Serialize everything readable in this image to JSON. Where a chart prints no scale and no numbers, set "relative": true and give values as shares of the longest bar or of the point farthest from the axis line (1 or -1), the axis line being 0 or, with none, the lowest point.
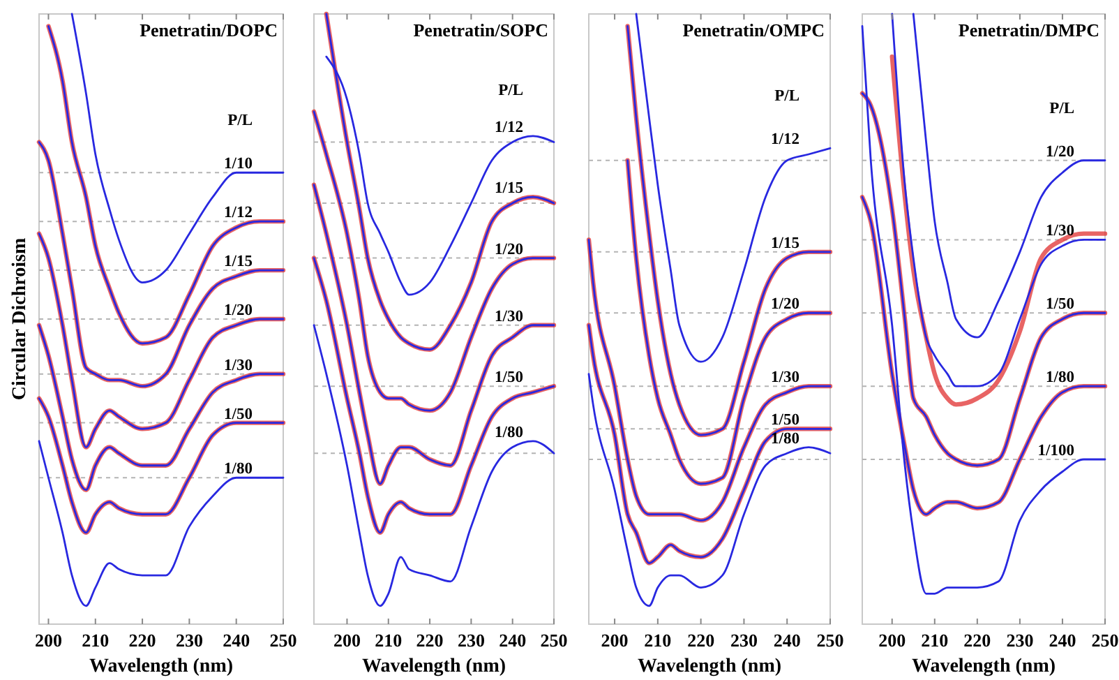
{
  "chart_data": [
    {
      "type": "line",
      "title": "Penetratin/DOPC",
      "legend_title": "P/L",
      "xlabel": "Wavelength (nm)",
      "ylabel": "Circular Dichroism",
      "relative": true,
      "xlim": [
        198,
        250
      ],
      "xticks": [
        200,
        210,
        220,
        230,
        240,
        250
      ],
      "x": [
        198,
        200,
        203,
        205,
        208,
        210,
        213,
        215,
        220,
        225,
        230,
        235,
        240,
        245,
        250
      ],
      "ref_lines": [
        {
          "axis": "y",
          "value": 0.74,
          "color": "#b4b4b4",
          "line_style": "dashed"
        },
        {
          "axis": "y",
          "value": 0.66,
          "color": "#b4b4b4",
          "line_style": "dashed"
        },
        {
          "axis": "y",
          "value": 0.58,
          "color": "#b4b4b4",
          "line_style": "dashed"
        },
        {
          "axis": "y",
          "value": 0.5,
          "color": "#b4b4b4",
          "line_style": "dashed"
        },
        {
          "axis": "y",
          "value": 0.41,
          "color": "#b4b4b4",
          "line_style": "dashed"
        },
        {
          "axis": "y",
          "value": 0.33,
          "color": "#b4b4b4",
          "line_style": "dashed"
        },
        {
          "axis": "y",
          "value": 0.24,
          "color": "#b4b4b4",
          "line_style": "dashed"
        }
      ],
      "series": [
        {
          "color": "#e03030",
          "values": [
            null,
            0.98,
            0.89,
            0.79,
            0.7,
            0.62,
            0.55,
            0.51,
            0.46,
            0.47,
            0.54,
            0.62,
            0.65,
            0.66,
            0.66
          ]
        },
        {
          "color": "#e03030",
          "values": [
            0.79,
            0.76,
            0.64,
            0.55,
            0.42,
            0.41,
            0.4,
            0.4,
            0.39,
            0.41,
            0.49,
            0.55,
            0.57,
            0.58,
            0.58
          ]
        },
        {
          "color": "#e03030",
          "values": [
            0.64,
            0.6,
            0.49,
            0.4,
            0.29,
            0.32,
            0.35,
            0.34,
            0.32,
            0.33,
            0.4,
            0.47,
            0.49,
            0.5,
            0.5
          ]
        },
        {
          "color": "#e03030",
          "values": [
            0.49,
            0.44,
            0.34,
            0.27,
            0.22,
            0.26,
            0.29,
            0.28,
            0.26,
            0.26,
            0.32,
            0.38,
            0.4,
            0.41,
            0.41
          ]
        },
        {
          "color": "#e03030",
          "values": [
            0.37,
            0.34,
            0.26,
            0.2,
            0.15,
            0.18,
            0.2,
            0.19,
            0.18,
            0.18,
            0.24,
            0.31,
            0.33,
            0.33,
            0.33
          ]
        },
        {
          "name": "1/10",
          "color": "#2828e0",
          "values": [
            null,
            null,
            null,
            1,
            0.87,
            0.77,
            0.68,
            0.63,
            0.56,
            0.58,
            0.64,
            0.7,
            0.74,
            0.74,
            0.74
          ]
        },
        {
          "name": "1/12",
          "color": "#2828e0",
          "values": [
            null,
            0.98,
            0.89,
            0.79,
            0.7,
            0.62,
            0.55,
            0.51,
            0.46,
            0.47,
            0.54,
            0.62,
            0.65,
            0.66,
            0.66
          ]
        },
        {
          "name": "1/15",
          "color": "#2828e0",
          "values": [
            0.79,
            0.76,
            0.64,
            0.55,
            0.42,
            0.41,
            0.4,
            0.4,
            0.39,
            0.41,
            0.49,
            0.55,
            0.57,
            0.58,
            0.58
          ]
        },
        {
          "name": "1/20",
          "color": "#2828e0",
          "values": [
            0.64,
            0.6,
            0.49,
            0.4,
            0.29,
            0.32,
            0.35,
            0.34,
            0.32,
            0.33,
            0.4,
            0.47,
            0.49,
            0.5,
            0.5
          ]
        },
        {
          "name": "1/30",
          "color": "#2828e0",
          "values": [
            0.49,
            0.44,
            0.34,
            0.27,
            0.22,
            0.26,
            0.29,
            0.28,
            0.26,
            0.26,
            0.32,
            0.38,
            0.4,
            0.41,
            0.41
          ]
        },
        {
          "name": "1/50",
          "color": "#2828e0",
          "values": [
            0.37,
            0.34,
            0.26,
            0.2,
            0.15,
            0.18,
            0.2,
            0.19,
            0.18,
            0.18,
            0.24,
            0.31,
            0.33,
            0.33,
            0.33
          ]
        },
        {
          "name": "1/80",
          "color": "#2828e0",
          "values": [
            0.3,
            0.24,
            0.15,
            0.08,
            0.03,
            0.06,
            0.1,
            0.09,
            0.08,
            0.08,
            0.16,
            0.21,
            0.24,
            0.24,
            0.24
          ]
        }
      ]
    },
    {
      "type": "line",
      "title": "Penetratin/SOPC",
      "legend_title": "P/L",
      "xlabel": "Wavelength (nm)",
      "relative": true,
      "xlim": [
        192,
        250
      ],
      "xticks": [
        200,
        210,
        220,
        230,
        240,
        250
      ],
      "x": [
        192,
        195,
        200,
        203,
        205,
        208,
        210,
        213,
        215,
        220,
        225,
        230,
        235,
        240,
        245,
        250
      ],
      "ref_lines": [
        {
          "axis": "y",
          "value": 0.79,
          "color": "#b4b4b4",
          "line_style": "dashed"
        },
        {
          "axis": "y",
          "value": 0.69,
          "color": "#b4b4b4",
          "line_style": "dashed"
        },
        {
          "axis": "y",
          "value": 0.6,
          "color": "#b4b4b4",
          "line_style": "dashed"
        },
        {
          "axis": "y",
          "value": 0.49,
          "color": "#b4b4b4",
          "line_style": "dashed"
        },
        {
          "axis": "y",
          "value": 0.39,
          "color": "#b4b4b4",
          "line_style": "dashed"
        },
        {
          "axis": "y",
          "value": 0.28,
          "color": "#b4b4b4",
          "line_style": "dashed"
        }
      ],
      "series": [
        {
          "color": "#e03030",
          "values": [
            null,
            1,
            0.79,
            0.68,
            0.6,
            0.53,
            0.5,
            0.47,
            0.46,
            0.45,
            0.49,
            0.56,
            0.66,
            0.69,
            0.7,
            0.69
          ]
        },
        {
          "color": "#e03030",
          "values": [
            0.84,
            0.77,
            0.64,
            0.53,
            0.44,
            0.38,
            0.37,
            0.37,
            0.36,
            0.35,
            0.38,
            0.47,
            0.55,
            0.59,
            0.6,
            0.6
          ]
        },
        {
          "color": "#e03030",
          "values": [
            0.72,
            0.64,
            0.49,
            0.38,
            0.31,
            0.23,
            0.26,
            0.29,
            0.29,
            0.27,
            0.26,
            0.35,
            0.44,
            0.47,
            0.49,
            0.49
          ]
        },
        {
          "color": "#e03030",
          "values": [
            0.6,
            0.53,
            0.37,
            0.28,
            0.21,
            0.15,
            0.18,
            0.2,
            0.19,
            0.18,
            0.18,
            0.26,
            0.34,
            0.37,
            0.38,
            0.39
          ]
        },
        {
          "name": "1/12",
          "color": "#2828e0",
          "values": [
            null,
            0.93,
            0.86,
            0.77,
            0.69,
            0.64,
            0.61,
            0.56,
            0.54,
            0.56,
            0.62,
            0.69,
            0.76,
            0.79,
            0.8,
            0.79
          ]
        },
        {
          "name": "1/15",
          "color": "#2828e0",
          "values": [
            null,
            1,
            0.79,
            0.68,
            0.6,
            0.53,
            0.5,
            0.47,
            0.46,
            0.45,
            0.49,
            0.56,
            0.66,
            0.69,
            0.7,
            0.69
          ]
        },
        {
          "name": "1/20",
          "color": "#2828e0",
          "values": [
            0.84,
            0.77,
            0.64,
            0.53,
            0.44,
            0.38,
            0.37,
            0.37,
            0.36,
            0.35,
            0.38,
            0.47,
            0.55,
            0.59,
            0.6,
            0.6
          ]
        },
        {
          "name": "1/30",
          "color": "#2828e0",
          "values": [
            0.72,
            0.64,
            0.49,
            0.38,
            0.31,
            0.23,
            0.26,
            0.29,
            0.29,
            0.27,
            0.26,
            0.35,
            0.44,
            0.47,
            0.49,
            0.49
          ]
        },
        {
          "name": "1/50",
          "color": "#2828e0",
          "values": [
            0.6,
            0.53,
            0.37,
            0.28,
            0.21,
            0.15,
            0.18,
            0.2,
            0.19,
            0.18,
            0.18,
            0.26,
            0.34,
            0.37,
            0.38,
            0.39
          ]
        },
        {
          "name": "1/80",
          "color": "#2828e0",
          "values": [
            0.49,
            0.41,
            0.26,
            0.15,
            0.08,
            0.03,
            0.05,
            0.11,
            0.09,
            0.08,
            0.07,
            0.16,
            0.25,
            0.29,
            0.3,
            0.28
          ]
        }
      ]
    },
    {
      "type": "line",
      "title": "Penetratin/OMPC",
      "legend_title": "P/L",
      "xlabel": "Wavelength (nm)",
      "relative": true,
      "xlim": [
        194,
        250
      ],
      "xticks": [
        200,
        210,
        220,
        230,
        240,
        250
      ],
      "x": [
        194,
        195,
        200,
        203,
        205,
        208,
        210,
        213,
        215,
        220,
        225,
        230,
        235,
        240,
        245,
        250
      ],
      "ref_lines": [
        {
          "axis": "y",
          "value": 0.76,
          "color": "#b4b4b4",
          "line_style": "dashed"
        },
        {
          "axis": "y",
          "value": 0.61,
          "color": "#b4b4b4",
          "line_style": "dashed"
        },
        {
          "axis": "y",
          "value": 0.51,
          "color": "#b4b4b4",
          "line_style": "dashed"
        },
        {
          "axis": "y",
          "value": 0.39,
          "color": "#b4b4b4",
          "line_style": "dashed"
        },
        {
          "axis": "y",
          "value": 0.32,
          "color": "#b4b4b4",
          "line_style": "dashed"
        },
        {
          "axis": "y",
          "value": 0.27,
          "color": "#b4b4b4",
          "line_style": "dashed"
        }
      ],
      "series": [
        {
          "color": "#e03030",
          "values": [
            null,
            null,
            null,
            0.98,
            0.83,
            0.64,
            0.53,
            0.41,
            0.36,
            0.31,
            0.32,
            0.43,
            0.55,
            0.6,
            0.61,
            0.61
          ]
        },
        {
          "color": "#e03030",
          "values": [
            null,
            null,
            null,
            0.76,
            0.6,
            0.44,
            0.37,
            0.31,
            0.27,
            0.23,
            0.24,
            0.37,
            0.47,
            0.5,
            0.51,
            0.51
          ]
        },
        {
          "color": "#e03030",
          "values": [
            0.63,
            0.56,
            0.39,
            0.27,
            0.21,
            0.18,
            0.18,
            0.18,
            0.18,
            0.17,
            0.2,
            0.29,
            0.36,
            0.38,
            0.39,
            0.39
          ]
        },
        {
          "color": "#e03030",
          "values": [
            0.49,
            0.44,
            0.31,
            0.18,
            0.15,
            0.1,
            0.11,
            0.13,
            0.12,
            0.11,
            0.14,
            0.22,
            0.3,
            0.32,
            0.32,
            0.32
          ]
        },
        {
          "name": "1/12",
          "color": "#2828e0",
          "values": [
            null,
            null,
            null,
            null,
            1,
            0.83,
            0.72,
            0.58,
            0.49,
            0.43,
            0.47,
            0.58,
            0.7,
            0.76,
            0.77,
            0.78
          ]
        },
        {
          "name": "1/15",
          "color": "#2828e0",
          "values": [
            null,
            null,
            null,
            0.98,
            0.83,
            0.64,
            0.53,
            0.41,
            0.36,
            0.31,
            0.32,
            0.43,
            0.55,
            0.6,
            0.61,
            0.61
          ]
        },
        {
          "name": "1/20",
          "color": "#2828e0",
          "values": [
            null,
            null,
            null,
            0.76,
            0.6,
            0.44,
            0.37,
            0.31,
            0.27,
            0.23,
            0.24,
            0.37,
            0.47,
            0.5,
            0.51,
            0.51
          ]
        },
        {
          "name": "1/30",
          "color": "#2828e0",
          "values": [
            0.63,
            0.56,
            0.39,
            0.27,
            0.21,
            0.18,
            0.18,
            0.18,
            0.18,
            0.17,
            0.2,
            0.29,
            0.36,
            0.38,
            0.39,
            0.39
          ]
        },
        {
          "name": "1/50",
          "color": "#2828e0",
          "values": [
            0.49,
            0.44,
            0.31,
            0.18,
            0.15,
            0.1,
            0.11,
            0.13,
            0.12,
            0.11,
            0.14,
            0.22,
            0.3,
            0.32,
            0.32,
            0.32
          ]
        },
        {
          "name": "1/80",
          "color": "#2828e0",
          "values": [
            0.41,
            0.36,
            0.22,
            0.12,
            0.06,
            0.03,
            0.06,
            0.08,
            0.08,
            0.06,
            0.08,
            0.18,
            0.26,
            0.28,
            0.29,
            0.28
          ]
        }
      ]
    },
    {
      "type": "line",
      "title": "Penetratin/DMPC",
      "legend_title": "P/L",
      "xlabel": "Wavelength (nm)",
      "relative": true,
      "xlim": [
        193,
        250
      ],
      "xticks": [
        200,
        210,
        220,
        230,
        240,
        250
      ],
      "x": [
        193,
        195,
        200,
        203,
        205,
        208,
        210,
        213,
        215,
        220,
        225,
        230,
        235,
        240,
        245,
        250
      ],
      "ref_lines": [
        {
          "axis": "y",
          "value": 0.76,
          "color": "#b4b4b4",
          "line_style": "dashed"
        },
        {
          "axis": "y",
          "value": 0.63,
          "color": "#b4b4b4",
          "line_style": "dashed"
        },
        {
          "axis": "y",
          "value": 0.51,
          "color": "#b4b4b4",
          "line_style": "dashed"
        },
        {
          "axis": "y",
          "value": 0.39,
          "color": "#b4b4b4",
          "line_style": "dashed"
        },
        {
          "axis": "y",
          "value": 0.27,
          "color": "#b4b4b4",
          "line_style": "dashed"
        }
      ],
      "series": [
        {
          "color": "#e03030",
          "values": [
            null,
            null,
            0.93,
            0.7,
            0.58,
            0.47,
            0.41,
            0.37,
            0.36,
            0.37,
            0.4,
            0.48,
            0.6,
            0.63,
            0.64,
            0.64
          ]
        },
        {
          "color": "#e03030",
          "values": [
            0.87,
            0.85,
            0.68,
            0.5,
            0.37,
            0.34,
            0.31,
            0.28,
            0.27,
            0.26,
            0.27,
            0.37,
            0.47,
            0.5,
            0.51,
            0.51
          ]
        },
        {
          "color": "#e03030",
          "values": [
            0.7,
            0.66,
            0.41,
            0.29,
            0.22,
            0.18,
            0.19,
            0.2,
            0.2,
            0.19,
            0.2,
            0.27,
            0.34,
            0.38,
            0.39,
            0.39
          ]
        },
        {
          "name": "1/20",
          "color": "#2828e0",
          "values": [
            null,
            null,
            null,
            null,
            1,
            0.79,
            0.66,
            0.56,
            0.5,
            0.47,
            0.53,
            0.61,
            0.7,
            0.74,
            0.76,
            0.76
          ]
        },
        {
          "name": "1/30",
          "color": "#2828e0",
          "values": [
            null,
            null,
            1,
            0.72,
            0.6,
            0.47,
            0.44,
            0.41,
            0.39,
            0.39,
            0.41,
            0.5,
            0.59,
            0.62,
            0.63,
            0.63
          ]
        },
        {
          "name": "1/50",
          "color": "#2828e0",
          "values": [
            0.87,
            0.85,
            0.68,
            0.5,
            0.37,
            0.34,
            0.31,
            0.28,
            0.27,
            0.26,
            0.27,
            0.37,
            0.47,
            0.5,
            0.51,
            0.51
          ]
        },
        {
          "name": "1/80",
          "color": "#2828e0",
          "values": [
            0.7,
            0.66,
            0.41,
            0.29,
            0.22,
            0.18,
            0.19,
            0.2,
            0.2,
            0.19,
            0.2,
            0.27,
            0.34,
            0.38,
            0.39,
            0.39
          ]
        },
        {
          "name": "1/100",
          "color": "#2828e0",
          "values": [
            0.98,
            0.76,
            0.49,
            0.26,
            0.15,
            0.05,
            0.05,
            0.06,
            0.06,
            0.06,
            0.07,
            0.17,
            0.22,
            0.25,
            0.27,
            0.27
          ]
        }
      ]
    }
  ]
}
